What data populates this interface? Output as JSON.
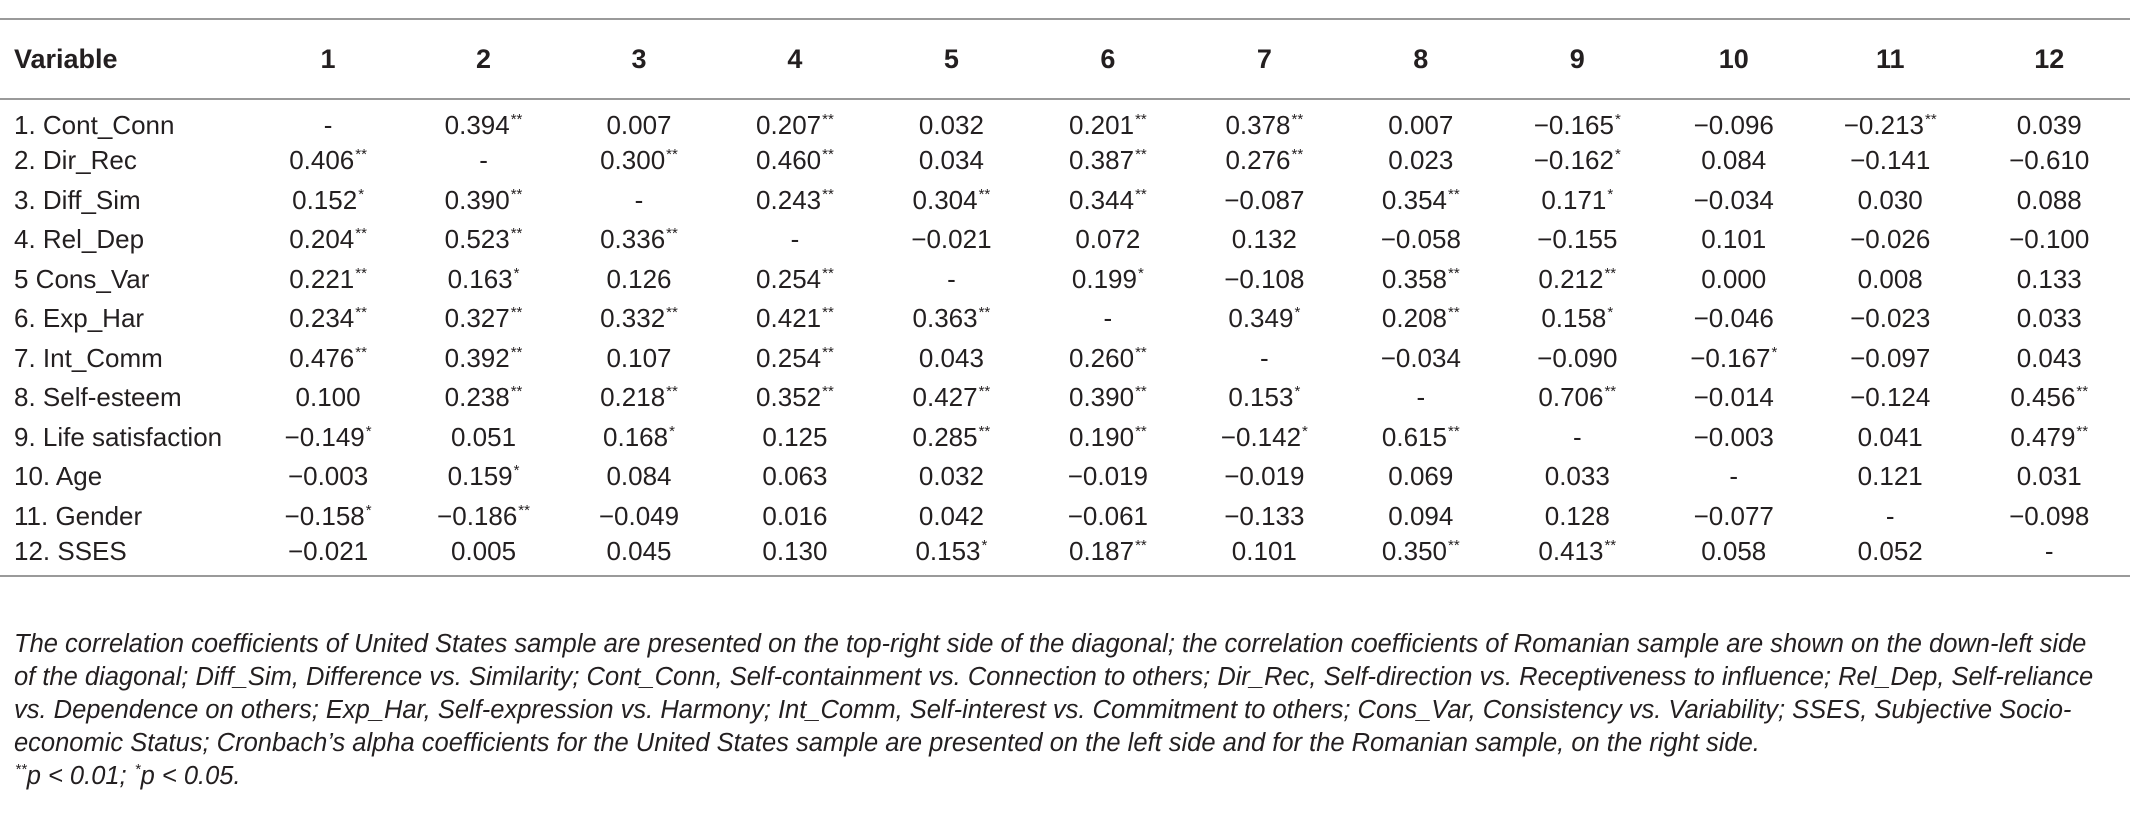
{
  "table": {
    "headers": [
      "Variable",
      "1",
      "2",
      "3",
      "4",
      "5",
      "6",
      "7",
      "8",
      "9",
      "10",
      "11",
      "12"
    ],
    "rows": [
      {
        "label": "1. Cont_Conn",
        "cells": [
          {
            "v": "-",
            "s": ""
          },
          {
            "v": "0.394",
            "s": "**"
          },
          {
            "v": "0.007",
            "s": ""
          },
          {
            "v": "0.207",
            "s": "**"
          },
          {
            "v": "0.032",
            "s": ""
          },
          {
            "v": "0.201",
            "s": "**"
          },
          {
            "v": "0.378",
            "s": "**"
          },
          {
            "v": "0.007",
            "s": ""
          },
          {
            "v": "−0.165",
            "s": "*"
          },
          {
            "v": "−0.096",
            "s": ""
          },
          {
            "v": "−0.213",
            "s": "**"
          },
          {
            "v": "0.039",
            "s": ""
          }
        ]
      },
      {
        "label": "2. Dir_Rec",
        "cells": [
          {
            "v": "0.406",
            "s": "**"
          },
          {
            "v": "-",
            "s": ""
          },
          {
            "v": "0.300",
            "s": "**"
          },
          {
            "v": "0.460",
            "s": "**"
          },
          {
            "v": "0.034",
            "s": ""
          },
          {
            "v": "0.387",
            "s": "**"
          },
          {
            "v": "0.276",
            "s": "**"
          },
          {
            "v": "0.023",
            "s": ""
          },
          {
            "v": "−0.162",
            "s": "*"
          },
          {
            "v": "0.084",
            "s": ""
          },
          {
            "v": "−0.141",
            "s": ""
          },
          {
            "v": "−0.610",
            "s": ""
          }
        ]
      },
      {
        "label": "3. Diff_Sim",
        "cells": [
          {
            "v": "0.152",
            "s": "*"
          },
          {
            "v": "0.390",
            "s": "**"
          },
          {
            "v": "-",
            "s": ""
          },
          {
            "v": "0.243",
            "s": "**"
          },
          {
            "v": "0.304",
            "s": "**"
          },
          {
            "v": "0.344",
            "s": "**"
          },
          {
            "v": "−0.087",
            "s": ""
          },
          {
            "v": "0.354",
            "s": "**"
          },
          {
            "v": "0.171",
            "s": "*"
          },
          {
            "v": "−0.034",
            "s": ""
          },
          {
            "v": "0.030",
            "s": ""
          },
          {
            "v": "0.088",
            "s": ""
          }
        ]
      },
      {
        "label": "4. Rel_Dep",
        "cells": [
          {
            "v": "0.204",
            "s": "**"
          },
          {
            "v": "0.523",
            "s": "**"
          },
          {
            "v": "0.336",
            "s": "**"
          },
          {
            "v": "-",
            "s": ""
          },
          {
            "v": "−0.021",
            "s": ""
          },
          {
            "v": "0.072",
            "s": ""
          },
          {
            "v": "0.132",
            "s": ""
          },
          {
            "v": "−0.058",
            "s": ""
          },
          {
            "v": "−0.155",
            "s": ""
          },
          {
            "v": "0.101",
            "s": ""
          },
          {
            "v": "−0.026",
            "s": ""
          },
          {
            "v": "−0.100",
            "s": ""
          }
        ]
      },
      {
        "label": "5 Cons_Var",
        "cells": [
          {
            "v": "0.221",
            "s": "**"
          },
          {
            "v": "0.163",
            "s": "*"
          },
          {
            "v": "0.126",
            "s": ""
          },
          {
            "v": "0.254",
            "s": "**"
          },
          {
            "v": "-",
            "s": ""
          },
          {
            "v": "0.199",
            "s": "*"
          },
          {
            "v": "−0.108",
            "s": ""
          },
          {
            "v": "0.358",
            "s": "**"
          },
          {
            "v": "0.212",
            "s": "**"
          },
          {
            "v": "0.000",
            "s": ""
          },
          {
            "v": "0.008",
            "s": ""
          },
          {
            "v": "0.133",
            "s": ""
          }
        ]
      },
      {
        "label": "6. Exp_Har",
        "cells": [
          {
            "v": "0.234",
            "s": "**"
          },
          {
            "v": "0.327",
            "s": "**"
          },
          {
            "v": "0.332",
            "s": "**"
          },
          {
            "v": "0.421",
            "s": "**"
          },
          {
            "v": "0.363",
            "s": "**"
          },
          {
            "v": "-",
            "s": ""
          },
          {
            "v": "0.349",
            "s": "*"
          },
          {
            "v": "0.208",
            "s": "**"
          },
          {
            "v": "0.158",
            "s": "*"
          },
          {
            "v": "−0.046",
            "s": ""
          },
          {
            "v": "−0.023",
            "s": ""
          },
          {
            "v": "0.033",
            "s": ""
          }
        ]
      },
      {
        "label": "7. Int_Comm",
        "cells": [
          {
            "v": "0.476",
            "s": "**"
          },
          {
            "v": "0.392",
            "s": "**"
          },
          {
            "v": "0.107",
            "s": ""
          },
          {
            "v": "0.254",
            "s": "**"
          },
          {
            "v": "0.043",
            "s": ""
          },
          {
            "v": "0.260",
            "s": "**"
          },
          {
            "v": "-",
            "s": ""
          },
          {
            "v": "−0.034",
            "s": ""
          },
          {
            "v": "−0.090",
            "s": ""
          },
          {
            "v": "−0.167",
            "s": "*"
          },
          {
            "v": "−0.097",
            "s": ""
          },
          {
            "v": "0.043",
            "s": ""
          }
        ]
      },
      {
        "label": "8. Self-esteem",
        "cells": [
          {
            "v": "0.100",
            "s": ""
          },
          {
            "v": "0.238",
            "s": "**"
          },
          {
            "v": "0.218",
            "s": "**"
          },
          {
            "v": "0.352",
            "s": "**"
          },
          {
            "v": "0.427",
            "s": "**"
          },
          {
            "v": "0.390",
            "s": "**"
          },
          {
            "v": "0.153",
            "s": "*"
          },
          {
            "v": "-",
            "s": ""
          },
          {
            "v": "0.706",
            "s": "**"
          },
          {
            "v": "−0.014",
            "s": ""
          },
          {
            "v": "−0.124",
            "s": ""
          },
          {
            "v": "0.456",
            "s": "**"
          }
        ]
      },
      {
        "label": "9. Life satisfaction",
        "cells": [
          {
            "v": "−0.149",
            "s": "*"
          },
          {
            "v": "0.051",
            "s": ""
          },
          {
            "v": "0.168",
            "s": "*"
          },
          {
            "v": "0.125",
            "s": ""
          },
          {
            "v": "0.285",
            "s": "**"
          },
          {
            "v": "0.190",
            "s": "**"
          },
          {
            "v": "−0.142",
            "s": "*"
          },
          {
            "v": "0.615",
            "s": "**"
          },
          {
            "v": "-",
            "s": ""
          },
          {
            "v": "−0.003",
            "s": ""
          },
          {
            "v": "0.041",
            "s": ""
          },
          {
            "v": "0.479",
            "s": "**"
          }
        ]
      },
      {
        "label": "10. Age",
        "cells": [
          {
            "v": "−0.003",
            "s": ""
          },
          {
            "v": "0.159",
            "s": "*"
          },
          {
            "v": "0.084",
            "s": ""
          },
          {
            "v": "0.063",
            "s": ""
          },
          {
            "v": "0.032",
            "s": ""
          },
          {
            "v": "−0.019",
            "s": ""
          },
          {
            "v": "−0.019",
            "s": ""
          },
          {
            "v": "0.069",
            "s": ""
          },
          {
            "v": "0.033",
            "s": ""
          },
          {
            "v": "-",
            "s": ""
          },
          {
            "v": "0.121",
            "s": ""
          },
          {
            "v": "0.031",
            "s": ""
          }
        ]
      },
      {
        "label": "11. Gender",
        "cells": [
          {
            "v": "−0.158",
            "s": "*"
          },
          {
            "v": "−0.186",
            "s": "**"
          },
          {
            "v": "−0.049",
            "s": ""
          },
          {
            "v": "0.016",
            "s": ""
          },
          {
            "v": "0.042",
            "s": ""
          },
          {
            "v": "−0.061",
            "s": ""
          },
          {
            "v": "−0.133",
            "s": ""
          },
          {
            "v": "0.094",
            "s": ""
          },
          {
            "v": "0.128",
            "s": ""
          },
          {
            "v": "−0.077",
            "s": ""
          },
          {
            "v": "-",
            "s": ""
          },
          {
            "v": "−0.098",
            "s": ""
          }
        ]
      },
      {
        "label": "12. SSES",
        "cells": [
          {
            "v": "−0.021",
            "s": ""
          },
          {
            "v": "0.005",
            "s": ""
          },
          {
            "v": "0.045",
            "s": ""
          },
          {
            "v": "0.130",
            "s": ""
          },
          {
            "v": "0.153",
            "s": "*"
          },
          {
            "v": "0.187",
            "s": "**"
          },
          {
            "v": "0.101",
            "s": ""
          },
          {
            "v": "0.350",
            "s": "**"
          },
          {
            "v": "0.413",
            "s": "**"
          },
          {
            "v": "0.058",
            "s": ""
          },
          {
            "v": "0.052",
            "s": ""
          },
          {
            "v": "-",
            "s": ""
          }
        ]
      }
    ]
  },
  "footnote": {
    "text": "The correlation coefficients of United States sample are presented on the top-right side of the diagonal; the correlation coefficients of Romanian sample are shown on the down-left side of the diagonal; Diff_Sim, Difference vs. Similarity; Cont_Conn, Self-containment vs. Connection to others; Dir_Rec, Self-direction vs. Receptiveness to influence; Rel_Dep, Self-reliance vs. Dependence on others; Exp_Har, Self-expression vs. Harmony; Int_Comm, Self-interest vs. Commitment to others; Cons_Var, Consistency vs. Variability; SSES, Subjective Socio-economic Status; Cronbach’s alpha coefficients for the United States sample are presented on the left side and for the Romanian sample, on the right side.",
    "sig_marker_1": "**",
    "sig_text_1": "p < 0.01; ",
    "sig_marker_2": "*",
    "sig_text_2": "p < 0.05."
  }
}
